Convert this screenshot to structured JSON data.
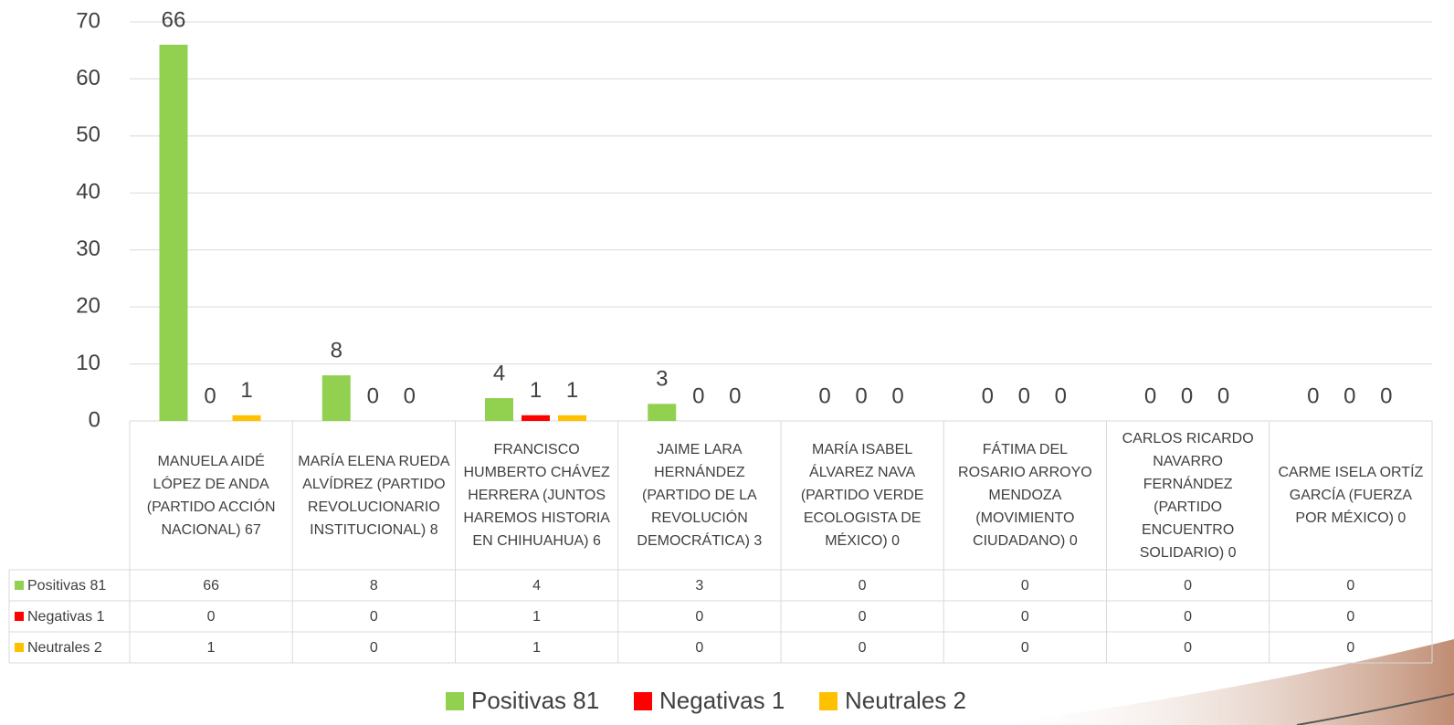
{
  "chart_data": {
    "type": "bar",
    "categories": [
      "MANUELA AIDÉ LÓPEZ DE ANDA (PARTIDO ACCIÓN NACIONAL) 67",
      "MARÍA ELENA RUEDA ALVÍDREZ (PARTIDO REVOLUCIONARIO INSTITUCIONAL) 8",
      "FRANCISCO HUMBERTO CHÁVEZ HERRERA (JUNTOS HAREMOS HISTORIA EN CHIHUAHUA) 6",
      "JAIME LARA HERNÁNDEZ (PARTIDO DE LA REVOLUCIÓN DEMOCRÁTICA) 3",
      "MARÍA ISABEL ÁLVAREZ NAVA (PARTIDO VERDE ECOLOGISTA DE MÉXICO) 0",
      "FÁTIMA DEL ROSARIO ARROYO MENDOZA (MOVIMIENTO CIUDADANO) 0",
      "CARLOS RICARDO NAVARRO FERNÁNDEZ (PARTIDO ENCUENTRO SOLIDARIO) 0",
      "CARME ISELA ORTÍZ GARCÍA (FUERZA POR MÉXICO) 0"
    ],
    "series": [
      {
        "name": "Positivas 81",
        "color": "#92d050",
        "values": [
          66,
          8,
          4,
          3,
          0,
          0,
          0,
          0
        ]
      },
      {
        "name": "Negativas 1",
        "color": "#ff0000",
        "values": [
          0,
          0,
          1,
          0,
          0,
          0,
          0,
          0
        ]
      },
      {
        "name": "Neutrales 2",
        "color": "#ffc000",
        "values": [
          1,
          0,
          1,
          0,
          0,
          0,
          0,
          0
        ]
      }
    ],
    "ylim": [
      0,
      70
    ],
    "yticks": [
      0,
      10,
      20,
      30,
      40,
      50,
      60,
      70
    ],
    "grid": true,
    "legend": "bottom"
  }
}
